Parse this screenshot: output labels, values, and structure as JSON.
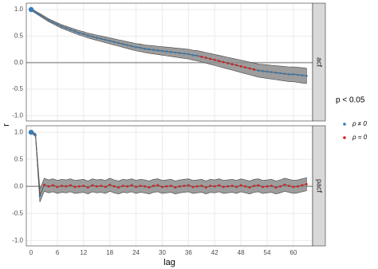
{
  "chart_data": [
    {
      "type": "line",
      "facet": "acf",
      "ylabel": "r",
      "legend": {
        "title": "p < 0.05",
        "items": [
          {
            "name": "ρ ≠ 0",
            "color": "#377eb8"
          },
          {
            "name": "ρ = 0",
            "color": "#e41a1c"
          }
        ]
      },
      "xlim": [
        -1.1,
        64.4
      ],
      "xticks": [
        0,
        6,
        12,
        18,
        24,
        30,
        36,
        42,
        48,
        54,
        60
      ],
      "ylim": [
        -1.1,
        1.12
      ],
      "yticks": [
        {
          "value": 1,
          "label": "1.0"
        },
        0.5,
        {
          "value": 0,
          "label": "0.0"
        },
        -0.5,
        {
          "value": -1,
          "label": "-1.0"
        }
      ],
      "grid": true,
      "reference_line": 0,
      "line_color": "#555555",
      "band_color": "#8c8c8c",
      "x": [
        0,
        1,
        2,
        3,
        4,
        5,
        6,
        7,
        8,
        9,
        10,
        11,
        12,
        13,
        14,
        15,
        16,
        17,
        18,
        19,
        20,
        21,
        22,
        23,
        24,
        25,
        26,
        27,
        28,
        29,
        30,
        31,
        32,
        33,
        34,
        35,
        36,
        37,
        38,
        39,
        40,
        41,
        42,
        43,
        44,
        45,
        46,
        47,
        48,
        49,
        50,
        51,
        52,
        53,
        54,
        55,
        56,
        57,
        58,
        59,
        60,
        61,
        62,
        63
      ],
      "values": [
        1.0,
        0.95,
        0.9,
        0.85,
        0.8,
        0.76,
        0.72,
        0.68,
        0.65,
        0.62,
        0.59,
        0.56,
        0.54,
        0.51,
        0.49,
        0.47,
        0.45,
        0.43,
        0.41,
        0.39,
        0.37,
        0.35,
        0.33,
        0.31,
        0.29,
        0.28,
        0.26,
        0.25,
        0.24,
        0.23,
        0.22,
        0.21,
        0.2,
        0.19,
        0.18,
        0.17,
        0.16,
        0.14,
        0.13,
        0.11,
        0.09,
        0.07,
        0.05,
        0.03,
        0.01,
        -0.01,
        -0.03,
        -0.05,
        -0.07,
        -0.09,
        -0.11,
        -0.13,
        -0.15,
        -0.16,
        -0.17,
        -0.18,
        -0.19,
        -0.2,
        -0.21,
        -0.22,
        -0.22,
        -0.23,
        -0.24,
        -0.25
      ],
      "lower": [
        0.98,
        0.928,
        0.876,
        0.824,
        0.772,
        0.73,
        0.688,
        0.646,
        0.614,
        0.582,
        0.55,
        0.518,
        0.496,
        0.464,
        0.442,
        0.42,
        0.398,
        0.376,
        0.354,
        0.332,
        0.31,
        0.288,
        0.266,
        0.244,
        0.222,
        0.21,
        0.188,
        0.176,
        0.164,
        0.152,
        0.14,
        0.128,
        0.116,
        0.104,
        0.092,
        0.08,
        0.068,
        0.046,
        0.034,
        0.012,
        -0.01,
        -0.032,
        -0.054,
        -0.076,
        -0.098,
        -0.12,
        -0.142,
        -0.164,
        -0.186,
        -0.208,
        -0.23,
        -0.252,
        -0.274,
        -0.286,
        -0.298,
        -0.31,
        -0.322,
        -0.334,
        -0.346,
        -0.358,
        -0.36,
        -0.372,
        -0.384,
        -0.396
      ],
      "upper": [
        1.02,
        0.972,
        0.924,
        0.876,
        0.828,
        0.79,
        0.752,
        0.714,
        0.686,
        0.658,
        0.63,
        0.602,
        0.584,
        0.556,
        0.538,
        0.52,
        0.502,
        0.484,
        0.466,
        0.448,
        0.43,
        0.412,
        0.394,
        0.376,
        0.358,
        0.35,
        0.332,
        0.324,
        0.316,
        0.308,
        0.3,
        0.292,
        0.284,
        0.276,
        0.268,
        0.26,
        0.252,
        0.234,
        0.226,
        0.208,
        0.19,
        0.172,
        0.154,
        0.136,
        0.118,
        0.1,
        0.082,
        0.064,
        0.046,
        0.028,
        0.01,
        -0.008,
        -0.026,
        -0.034,
        -0.042,
        -0.05,
        -0.058,
        -0.066,
        -0.074,
        -0.082,
        -0.08,
        -0.088,
        -0.096,
        -0.104
      ],
      "point_colors": [
        "#377eb8",
        "#377eb8",
        "#377eb8",
        "#377eb8",
        "#377eb8",
        "#377eb8",
        "#377eb8",
        "#377eb8",
        "#377eb8",
        "#377eb8",
        "#377eb8",
        "#377eb8",
        "#377eb8",
        "#377eb8",
        "#377eb8",
        "#377eb8",
        "#377eb8",
        "#377eb8",
        "#377eb8",
        "#377eb8",
        "#377eb8",
        "#377eb8",
        "#377eb8",
        "#377eb8",
        "#377eb8",
        "#377eb8",
        "#377eb8",
        "#377eb8",
        "#377eb8",
        "#377eb8",
        "#377eb8",
        "#377eb8",
        "#377eb8",
        "#377eb8",
        "#377eb8",
        "#377eb8",
        "#377eb8",
        "#377eb8",
        "#377eb8",
        "#e41a1c",
        "#e41a1c",
        "#e41a1c",
        "#e41a1c",
        "#e41a1c",
        "#e41a1c",
        "#e41a1c",
        "#e41a1c",
        "#e41a1c",
        "#e41a1c",
        "#e41a1c",
        "#e41a1c",
        "#e41a1c",
        "#377eb8",
        "#377eb8",
        "#377eb8",
        "#377eb8",
        "#377eb8",
        "#377eb8",
        "#377eb8",
        "#377eb8",
        "#377eb8",
        "#377eb8",
        "#377eb8",
        "#377eb8"
      ]
    },
    {
      "type": "line",
      "facet": "pacf",
      "xlabel": "lag",
      "xlim": [
        -1.1,
        64.4
      ],
      "xticks": [
        0,
        6,
        12,
        18,
        24,
        30,
        36,
        42,
        48,
        54,
        60
      ],
      "ylim": [
        -1.1,
        1.12
      ],
      "yticks": [
        {
          "value": 1,
          "label": "1.0"
        },
        0.5,
        {
          "value": 0,
          "label": "0.0"
        },
        -0.5,
        {
          "value": -1,
          "label": "-1.0"
        }
      ],
      "grid": true,
      "reference_line": 0,
      "line_color": "#555555",
      "band_color": "#8c8c8c",
      "x": [
        0,
        1,
        2,
        3,
        4,
        5,
        6,
        7,
        8,
        9,
        10,
        11,
        12,
        13,
        14,
        15,
        16,
        17,
        18,
        19,
        20,
        21,
        22,
        23,
        24,
        25,
        26,
        27,
        28,
        29,
        30,
        31,
        32,
        33,
        34,
        35,
        36,
        37,
        38,
        39,
        40,
        41,
        42,
        43,
        44,
        45,
        46,
        47,
        48,
        49,
        50,
        51,
        52,
        53,
        54,
        55,
        56,
        57,
        58,
        59,
        60,
        61,
        62,
        63
      ],
      "values": [
        1.0,
        0.95,
        -0.17,
        0.03,
        0.0,
        0.02,
        -0.01,
        0.01,
        0.0,
        0.02,
        -0.01,
        0.0,
        0.01,
        -0.02,
        0.02,
        0.0,
        0.01,
        -0.01,
        0.03,
        0.0,
        -0.02,
        0.01,
        0.0,
        0.02,
        -0.01,
        0.01,
        0.0,
        -0.02,
        0.01,
        0.02,
        -0.01,
        0.0,
        0.01,
        -0.02,
        0.0,
        0.01,
        0.02,
        -0.01,
        0.0,
        0.01,
        -0.02,
        0.01,
        0.0,
        0.02,
        -0.01,
        0.0,
        0.01,
        -0.01,
        0.02,
        0.0,
        -0.02,
        0.01,
        0.02,
        -0.01,
        0.0,
        0.01,
        -0.02,
        0.0,
        0.03,
        0.01,
        -0.01,
        0.0,
        0.02,
        0.04
      ],
      "lower": [
        0.99,
        0.92,
        -0.29,
        -0.09,
        -0.12,
        -0.1,
        -0.13,
        -0.11,
        -0.12,
        -0.1,
        -0.13,
        -0.12,
        -0.11,
        -0.14,
        -0.1,
        -0.12,
        -0.11,
        -0.13,
        -0.09,
        -0.12,
        -0.14,
        -0.11,
        -0.12,
        -0.1,
        -0.13,
        -0.11,
        -0.12,
        -0.14,
        -0.11,
        -0.1,
        -0.13,
        -0.12,
        -0.11,
        -0.14,
        -0.12,
        -0.11,
        -0.1,
        -0.13,
        -0.12,
        -0.11,
        -0.14,
        -0.11,
        -0.12,
        -0.1,
        -0.13,
        -0.12,
        -0.11,
        -0.13,
        -0.1,
        -0.12,
        -0.14,
        -0.11,
        -0.1,
        -0.13,
        -0.12,
        -0.11,
        -0.14,
        -0.12,
        -0.09,
        -0.11,
        -0.13,
        -0.12,
        -0.1,
        -0.08
      ],
      "upper": [
        1.01,
        0.98,
        -0.05,
        0.15,
        0.12,
        0.14,
        0.11,
        0.13,
        0.12,
        0.14,
        0.11,
        0.12,
        0.13,
        0.1,
        0.14,
        0.12,
        0.13,
        0.11,
        0.15,
        0.12,
        0.1,
        0.13,
        0.12,
        0.14,
        0.11,
        0.13,
        0.12,
        0.1,
        0.13,
        0.14,
        0.11,
        0.12,
        0.13,
        0.1,
        0.12,
        0.13,
        0.14,
        0.11,
        0.12,
        0.13,
        0.1,
        0.13,
        0.12,
        0.14,
        0.11,
        0.12,
        0.13,
        0.11,
        0.14,
        0.12,
        0.1,
        0.13,
        0.14,
        0.11,
        0.12,
        0.13,
        0.1,
        0.12,
        0.15,
        0.13,
        0.11,
        0.12,
        0.14,
        0.16
      ],
      "point_colors": [
        "#377eb8",
        "#377eb8",
        "#377eb8",
        "#e41a1c",
        "#e41a1c",
        "#e41a1c",
        "#e41a1c",
        "#e41a1c",
        "#e41a1c",
        "#e41a1c",
        "#e41a1c",
        "#e41a1c",
        "#e41a1c",
        "#e41a1c",
        "#e41a1c",
        "#e41a1c",
        "#e41a1c",
        "#e41a1c",
        "#e41a1c",
        "#e41a1c",
        "#e41a1c",
        "#e41a1c",
        "#e41a1c",
        "#e41a1c",
        "#e41a1c",
        "#e41a1c",
        "#e41a1c",
        "#e41a1c",
        "#e41a1c",
        "#e41a1c",
        "#e41a1c",
        "#e41a1c",
        "#e41a1c",
        "#e41a1c",
        "#e41a1c",
        "#e41a1c",
        "#e41a1c",
        "#e41a1c",
        "#e41a1c",
        "#e41a1c",
        "#e41a1c",
        "#e41a1c",
        "#e41a1c",
        "#e41a1c",
        "#e41a1c",
        "#e41a1c",
        "#e41a1c",
        "#e41a1c",
        "#e41a1c",
        "#e41a1c",
        "#e41a1c",
        "#e41a1c",
        "#e41a1c",
        "#e41a1c",
        "#e41a1c",
        "#e41a1c",
        "#e41a1c",
        "#e41a1c",
        "#e41a1c",
        "#e41a1c",
        "#e41a1c",
        "#e41a1c",
        "#e41a1c",
        "#e41a1c"
      ]
    }
  ]
}
